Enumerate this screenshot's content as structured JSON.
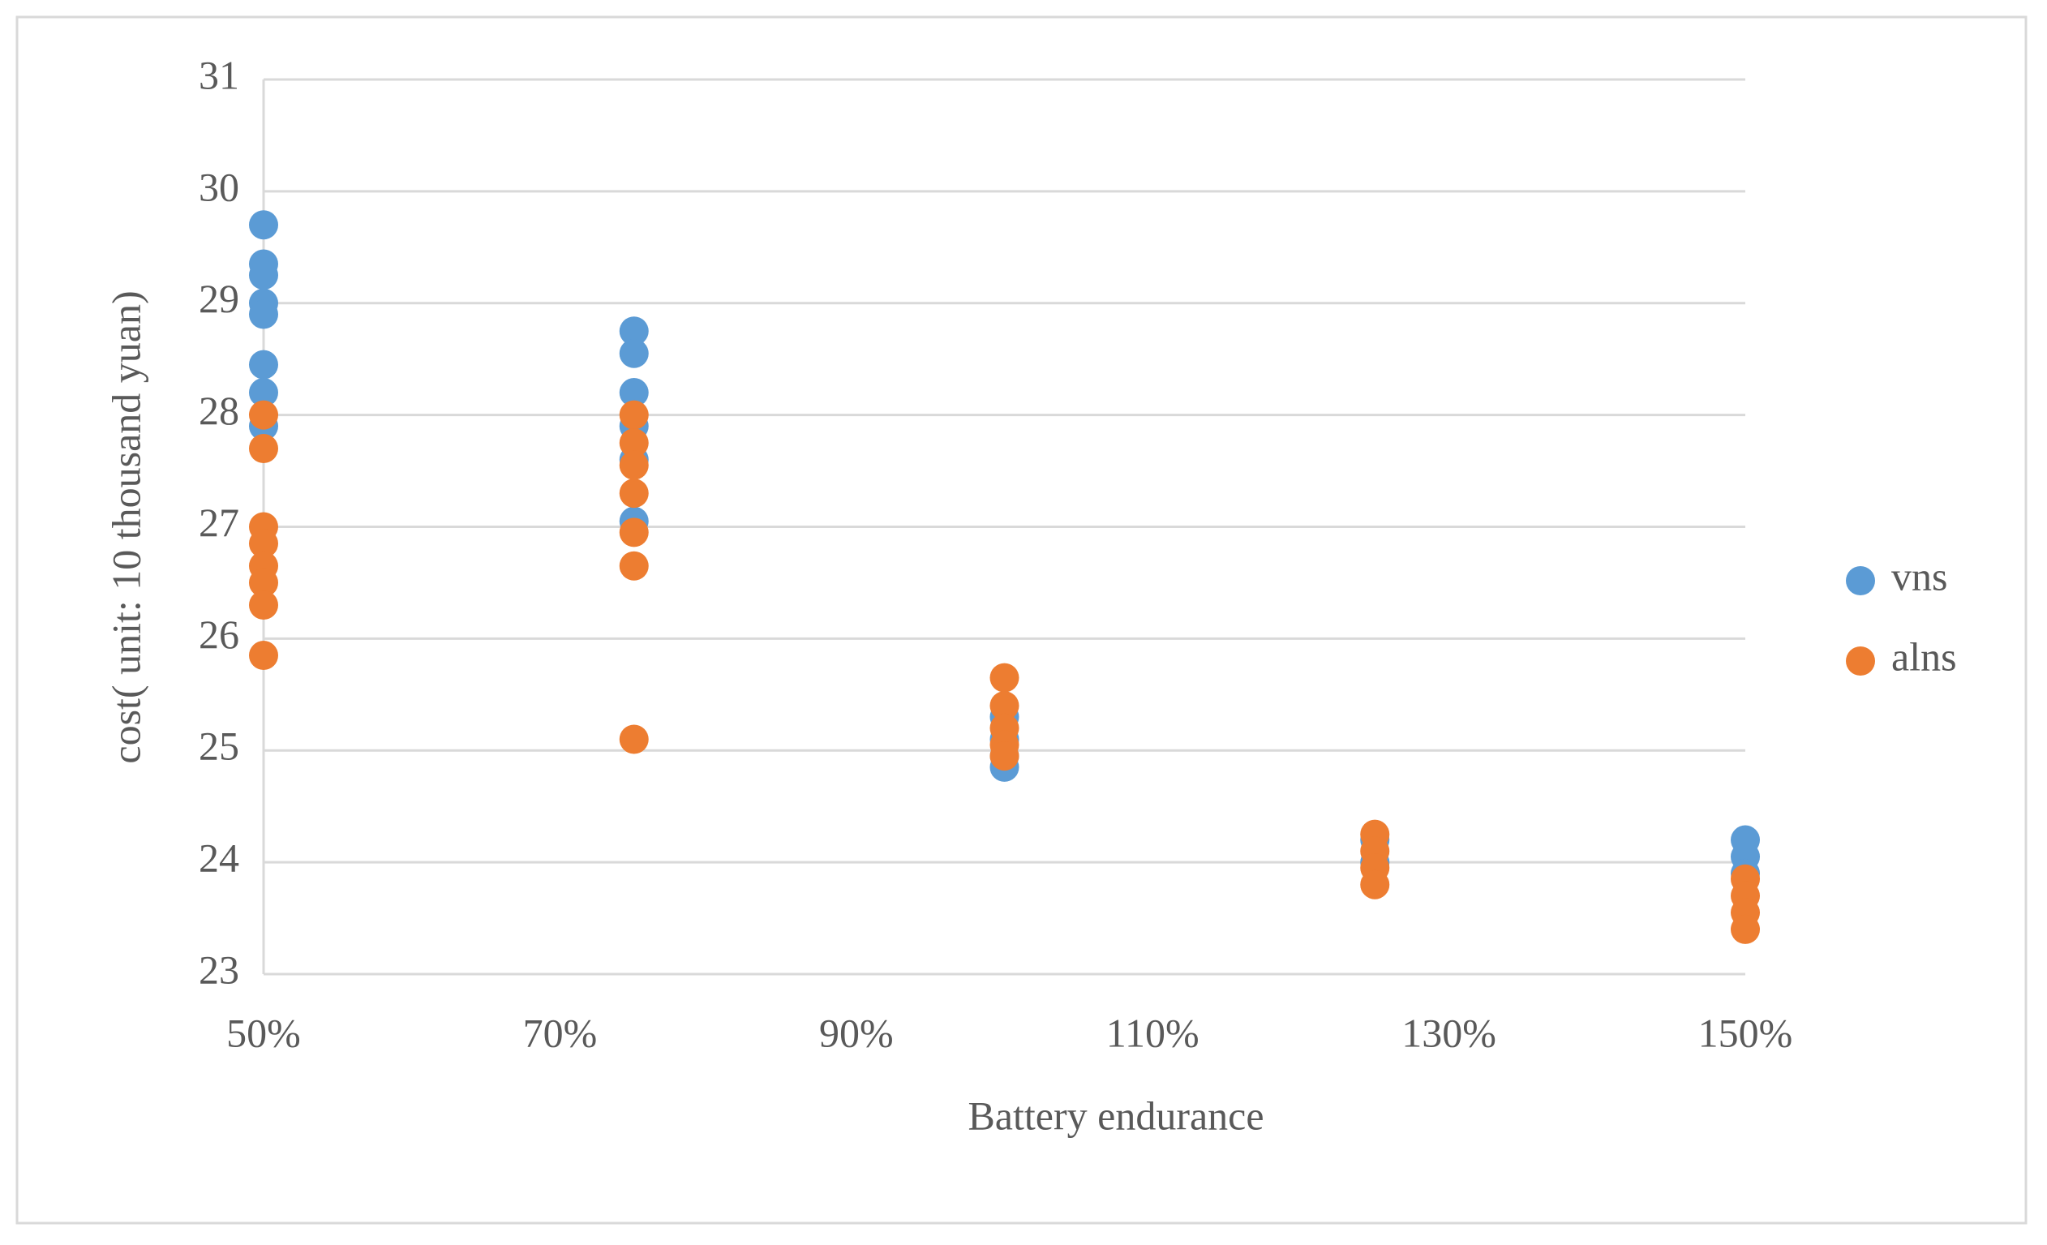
{
  "chart_data": {
    "type": "scatter",
    "x_label": "Battery endurance",
    "y_label": "cost( unit: 10 thousand yuan)",
    "xlim": [
      50,
      150
    ],
    "xticks": [
      {
        "value": 50,
        "label": "50%"
      },
      {
        "value": 70,
        "label": "70%"
      },
      {
        "value": 90,
        "label": "90%"
      },
      {
        "value": 110,
        "label": "110%"
      },
      {
        "value": 130,
        "label": "130%"
      },
      {
        "value": 150,
        "label": "150%"
      }
    ],
    "ylim": [
      23,
      31
    ],
    "yticks": [
      23,
      24,
      25,
      26,
      27,
      28,
      29,
      30,
      31
    ],
    "grid": true,
    "legend": "right",
    "series": [
      {
        "name": "vns",
        "color": "#5b9bd5",
        "x": [
          50,
          50,
          50,
          50,
          50,
          50,
          50,
          50,
          75,
          75,
          75,
          75,
          75,
          75,
          100,
          100,
          100,
          100,
          125,
          125,
          150,
          150,
          150
        ],
        "values": [
          29.7,
          29.35,
          29.25,
          29.0,
          28.9,
          28.45,
          28.2,
          27.9,
          28.75,
          28.55,
          28.2,
          27.9,
          27.6,
          27.05,
          25.3,
          25.1,
          24.95,
          24.85,
          24.2,
          24.0,
          24.2,
          24.05,
          23.9
        ]
      },
      {
        "name": "alns",
        "color": "#ed7d31",
        "x": [
          50,
          50,
          50,
          50,
          50,
          50,
          50,
          50,
          75,
          75,
          75,
          75,
          75,
          75,
          75,
          100,
          100,
          100,
          100,
          100,
          125,
          125,
          125,
          125,
          150,
          150,
          150,
          150
        ],
        "values": [
          28.0,
          27.7,
          27.0,
          26.85,
          26.65,
          26.5,
          26.3,
          25.85,
          28.0,
          27.75,
          27.55,
          27.3,
          26.95,
          26.65,
          25.1,
          25.65,
          25.4,
          25.2,
          25.05,
          24.95,
          24.25,
          24.1,
          23.95,
          23.8,
          23.85,
          23.7,
          23.55,
          23.4
        ]
      }
    ]
  }
}
